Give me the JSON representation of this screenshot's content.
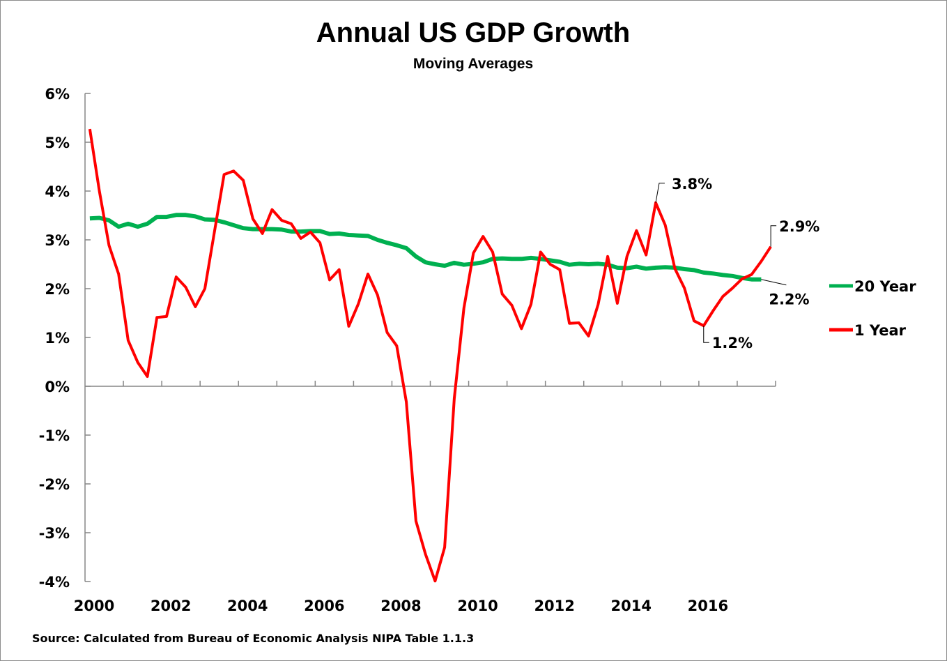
{
  "chart_data": {
    "type": "line",
    "title": "Annual US GDP Growth",
    "subtitle": "Moving Averages",
    "xlabel": "",
    "ylabel": "",
    "source": "Source: Calculated  from Bureau of Economic Analysis NIPA Table  1.1.3",
    "x_frequency": "quarterly",
    "x_start": "2000 Q1",
    "x_tick_labels": [
      "2000",
      "2002",
      "2004",
      "2006",
      "2008",
      "2010",
      "2012",
      "2014",
      "2016"
    ],
    "y_tick_labels": [
      "6%",
      "5%",
      "4%",
      "3%",
      "2%",
      "1%",
      "0%",
      "-1%",
      "-2%",
      "-3%",
      "-4%"
    ],
    "ylim": [
      -4,
      6
    ],
    "xlim_years": [
      2000,
      2018
    ],
    "grid": false,
    "legend_position": "right",
    "series": [
      {
        "name": "20 Year",
        "color": "#00b050",
        "values": [
          3.44,
          3.45,
          3.4,
          3.27,
          3.33,
          3.27,
          3.33,
          3.47,
          3.47,
          3.51,
          3.51,
          3.48,
          3.42,
          3.41,
          3.36,
          3.3,
          3.24,
          3.22,
          3.22,
          3.22,
          3.21,
          3.17,
          3.17,
          3.18,
          3.18,
          3.12,
          3.13,
          3.1,
          3.09,
          3.08,
          3.0,
          2.94,
          2.89,
          2.83,
          2.66,
          2.54,
          2.5,
          2.47,
          2.53,
          2.49,
          2.51,
          2.54,
          2.61,
          2.62,
          2.61,
          2.61,
          2.63,
          2.61,
          2.58,
          2.55,
          2.49,
          2.51,
          2.5,
          2.51,
          2.49,
          2.43,
          2.42,
          2.45,
          2.41,
          2.43,
          2.44,
          2.43,
          2.4,
          2.38,
          2.33,
          2.31,
          2.28,
          2.26,
          2.22,
          2.19,
          2.19
        ],
        "annotations": [
          {
            "index": 70,
            "label": "2.2%"
          }
        ]
      },
      {
        "name": "1 Year",
        "color": "#ff0000",
        "values": [
          5.27,
          4.0,
          2.89,
          2.3,
          0.94,
          0.49,
          0.2,
          1.41,
          1.43,
          2.24,
          2.03,
          1.63,
          2.0,
          3.17,
          4.34,
          4.41,
          4.22,
          3.43,
          3.13,
          3.62,
          3.4,
          3.33,
          3.03,
          3.16,
          2.94,
          2.18,
          2.39,
          1.23,
          1.69,
          2.3,
          1.87,
          1.1,
          0.83,
          -0.32,
          -2.76,
          -3.44,
          -3.99,
          -3.3,
          -0.25,
          1.6,
          2.73,
          3.07,
          2.75,
          1.89,
          1.66,
          1.18,
          1.68,
          2.75,
          2.5,
          2.39,
          1.29,
          1.3,
          1.03,
          1.68,
          2.66,
          1.7,
          2.66,
          3.19,
          2.69,
          3.76,
          3.3,
          2.41,
          2.01,
          1.34,
          1.24,
          1.55,
          1.84,
          2.01,
          2.2,
          2.29,
          2.56,
          2.86
        ],
        "annotations": [
          {
            "index": 59,
            "label": "3.8%"
          },
          {
            "index": 64,
            "label": "1.2%"
          },
          {
            "index": 71,
            "label": "2.9%"
          }
        ]
      }
    ]
  }
}
